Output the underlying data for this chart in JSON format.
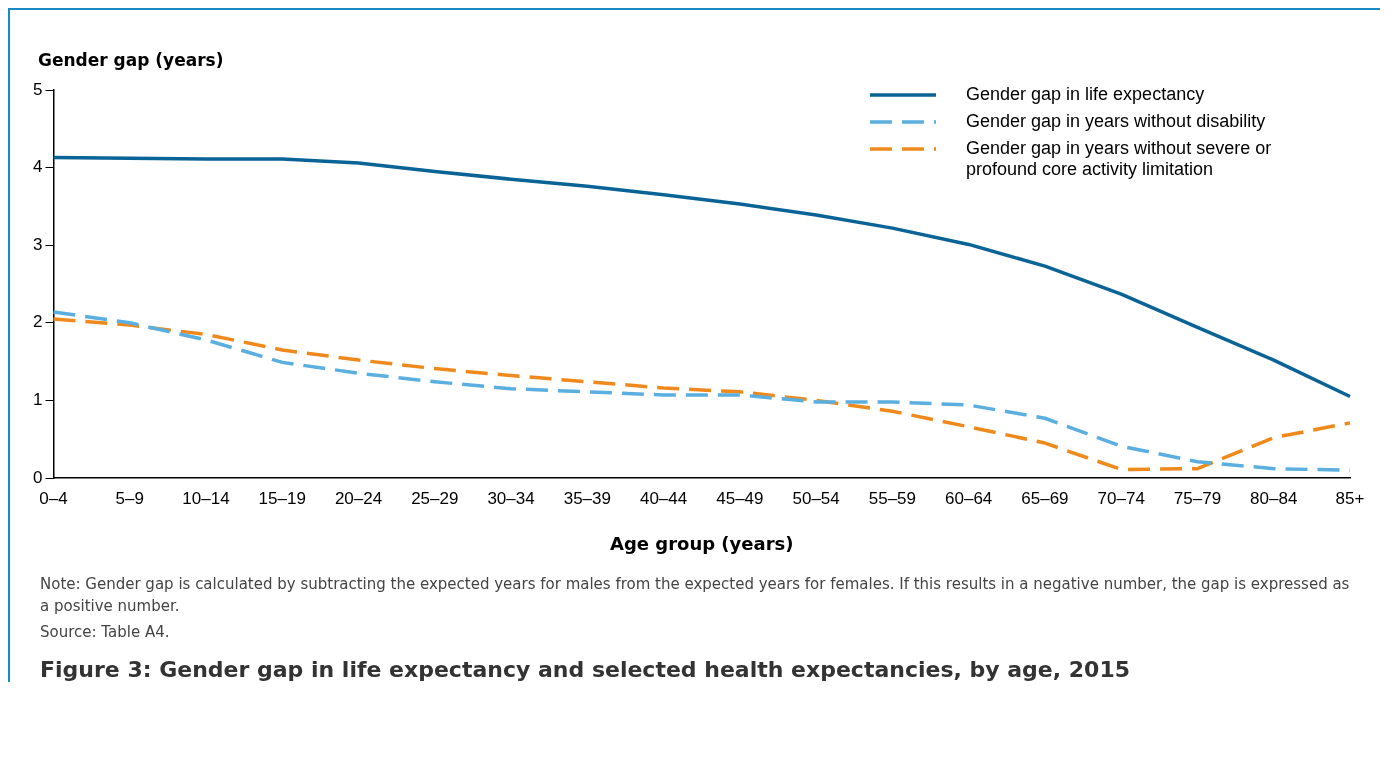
{
  "chart_data": {
    "type": "line",
    "title": "Figure 3: Gender gap in life expectancy and selected health expectancies, by age, 2015",
    "xlabel": "Age group (years)",
    "ylabel": "Gender gap (years)",
    "categories": [
      "0–4",
      "5–9",
      "10–14",
      "15–19",
      "20–24",
      "25–29",
      "30–34",
      "35–39",
      "40–44",
      "45–49",
      "50–54",
      "55–59",
      "60–64",
      "65–69",
      "70–74",
      "75–79",
      "80–84",
      "85+"
    ],
    "series": [
      {
        "name": "Gender gap in life expectancy",
        "color": "#0a6396",
        "line_style": "solid",
        "values": [
          4.13,
          4.12,
          4.11,
          4.11,
          4.06,
          3.95,
          3.85,
          3.76,
          3.65,
          3.53,
          3.39,
          3.22,
          3.01,
          2.73,
          2.37,
          1.94,
          1.52,
          1.05
        ]
      },
      {
        "name": "Gender gap in years without disability",
        "color": "#5aafe0",
        "line_style": "dashed",
        "values": [
          2.14,
          2.0,
          1.78,
          1.49,
          1.35,
          1.24,
          1.15,
          1.11,
          1.07,
          1.07,
          0.98,
          0.98,
          0.94,
          0.77,
          0.41,
          0.21,
          0.12,
          0.1
        ]
      },
      {
        "name": "Gender gap in years without severe or profound core activity limitation",
        "color": "#f0891c",
        "line_style": "dashed",
        "values": [
          2.05,
          1.97,
          1.85,
          1.65,
          1.52,
          1.41,
          1.32,
          1.24,
          1.16,
          1.11,
          1.0,
          0.86,
          0.66,
          0.45,
          0.11,
          0.12,
          0.52,
          0.71
        ]
      }
    ],
    "ylim": [
      0,
      5
    ],
    "yticks": [
      0,
      1,
      2,
      3,
      4,
      5
    ],
    "grid": false,
    "legend": "top right",
    "marker": "none",
    "annotations": [
      "Note: Gender gap is calculated by subtracting the expected years for males from the expected years for females. If this results in a negative number, the gap is expressed as a positive number.",
      "Source: Table A4."
    ]
  }
}
